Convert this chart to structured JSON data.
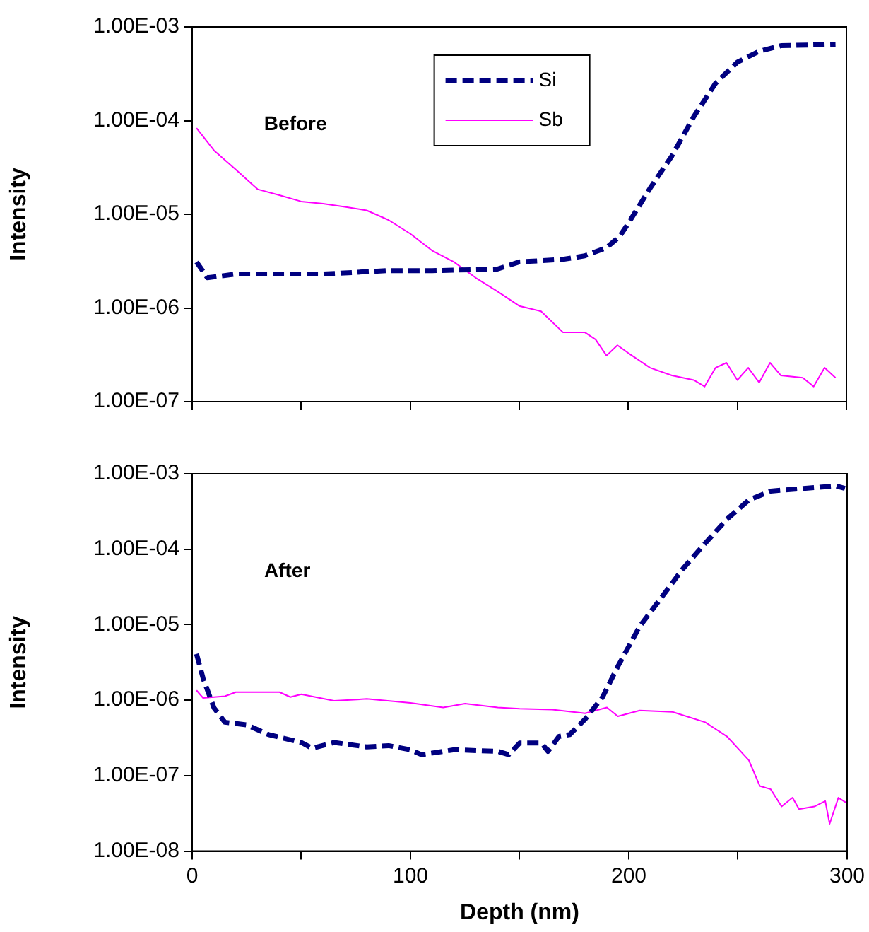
{
  "chart_data": [
    {
      "type": "line",
      "ylabel": "Intensity",
      "annotations": [
        "Before"
      ],
      "log": "y",
      "legend": "top",
      "tick_labels": "y",
      "grid": false,
      "marker": "none",
      "xlim": [
        0,
        300
      ],
      "xticks": [
        0,
        50,
        100,
        150,
        200,
        250,
        300
      ],
      "ylim": [
        1e-07,
        0.001
      ],
      "yticks": [
        {
          "value": 1e-07,
          "label": "1.00E-07"
        },
        {
          "value": 1e-06,
          "label": "1.00E-06"
        },
        {
          "value": 1e-05,
          "label": "1.00E-05"
        },
        {
          "value": 0.0001,
          "label": "1.00E-04"
        },
        {
          "value": 0.001,
          "label": "1.00E-03"
        }
      ],
      "series": [
        {
          "name": "Si",
          "color": "#000080",
          "line_style": "dashed",
          "x": [
            2,
            7,
            20,
            40,
            60,
            89,
            110,
            140,
            150,
            170,
            180,
            190,
            196,
            200,
            210,
            220,
            230,
            240,
            250,
            260,
            270,
            295
          ],
          "values": [
            3.1e-06,
            2.1e-06,
            2.3e-06,
            2.3e-06,
            2.3e-06,
            2.5e-06,
            2.5e-06,
            2.6e-06,
            3.1e-06,
            3.3e-06,
            3.6e-06,
            4.4e-06,
            5.8e-06,
            8e-06,
            1.9e-05,
            4.2e-05,
            0.00011,
            0.00025,
            0.00042,
            0.00055,
            0.00063,
            0.00065
          ]
        },
        {
          "name": "Sb",
          "color": "#ff00ff",
          "line_style": "solid",
          "x": [
            2,
            10,
            20,
            30,
            40,
            50,
            60,
            70,
            80,
            90,
            100,
            110,
            120,
            130,
            140,
            150,
            160,
            170,
            180,
            185,
            190,
            195,
            200,
            210,
            220,
            230,
            235,
            240,
            245,
            250,
            255,
            260,
            265,
            270,
            280,
            285,
            290,
            295
          ],
          "values": [
            8.3e-05,
            4.8e-05,
            3e-05,
            1.85e-05,
            1.6e-05,
            1.37e-05,
            1.3e-05,
            1.2e-05,
            1.1e-05,
            8.7e-06,
            6.2e-06,
            4.1e-06,
            3.1e-06,
            2.1e-06,
            1.5e-06,
            1.05e-06,
            9.2e-07,
            5.5e-07,
            5.5e-07,
            4.6e-07,
            3.1e-07,
            4e-07,
            3.3e-07,
            2.3e-07,
            1.9e-07,
            1.7e-07,
            1.45e-07,
            2.3e-07,
            2.6e-07,
            1.7e-07,
            2.3e-07,
            1.6e-07,
            2.6e-07,
            1.9e-07,
            1.8e-07,
            1.45e-07,
            2.3e-07,
            1.8e-07
          ]
        }
      ]
    },
    {
      "type": "line",
      "ylabel": "Intensity",
      "xlabel": "Depth (nm)",
      "annotations": [
        "After"
      ],
      "log": "y",
      "legend": false,
      "grid": false,
      "marker": "none",
      "xlim": [
        0,
        300
      ],
      "xticks": [
        0,
        {
          "value": 50,
          "label": null
        },
        100,
        {
          "value": 150,
          "label": null
        },
        200,
        {
          "value": 250,
          "label": null
        },
        300
      ],
      "ylim": [
        1e-08,
        0.001
      ],
      "yticks": [
        {
          "value": 1e-08,
          "label": "1.00E-08"
        },
        {
          "value": 1e-07,
          "label": "1.00E-07"
        },
        {
          "value": 1e-06,
          "label": "1.00E-06"
        },
        {
          "value": 1e-05,
          "label": "1.00E-05"
        },
        {
          "value": 0.0001,
          "label": "1.00E-04"
        },
        {
          "value": 0.001,
          "label": "1.00E-03"
        }
      ],
      "series": [
        {
          "color": "#000080",
          "line_style": "dashed",
          "x": [
            2,
            5,
            10,
            15,
            25,
            35,
            50,
            55,
            65,
            80,
            90,
            100,
            105,
            120,
            140,
            145,
            150,
            160,
            163,
            168,
            173,
            180,
            188,
            195,
            205,
            215,
            225,
            235,
            245,
            255,
            265,
            280,
            295,
            299
          ],
          "values": [
            4.1e-06,
            1.95e-06,
            7.9e-07,
            5.1e-07,
            4.7e-07,
            3.5e-07,
            2.75e-07,
            2.3e-07,
            2.75e-07,
            2.4e-07,
            2.5e-07,
            2.2e-07,
            1.9e-07,
            2.2e-07,
            2.1e-07,
            1.9e-07,
            2.7e-07,
            2.7e-07,
            2.1e-07,
            3.3e-07,
            3.5e-07,
            5.6e-07,
            1.1e-06,
            2.8e-06,
            9.5e-06,
            2.3e-05,
            5.6e-05,
            0.00012,
            0.00025,
            0.00045,
            0.00059,
            0.00064,
            0.00069,
            0.00064
          ]
        },
        {
          "color": "#ff00ff",
          "line_style": "solid",
          "x": [
            2,
            5,
            15,
            20,
            40,
            45,
            50,
            65,
            80,
            100,
            115,
            125,
            140,
            150,
            165,
            180,
            190,
            195,
            205,
            220,
            235,
            245,
            255,
            260,
            265,
            270,
            275,
            278,
            285,
            290,
            292,
            296,
            300
          ],
          "values": [
            1.35e-06,
            1.07e-06,
            1.13e-06,
            1.28e-06,
            1.28e-06,
            1.1e-06,
            1.2e-06,
            9.8e-07,
            1.04e-06,
            9.2e-07,
            8e-07,
            9e-07,
            8e-07,
            7.7e-07,
            7.5e-07,
            6.7e-07,
            8e-07,
            6.1e-07,
            7.3e-07,
            7e-07,
            5.1e-07,
            3.3e-07,
            1.6e-07,
            7.3e-08,
            6.6e-08,
            3.9e-08,
            5.1e-08,
            3.6e-08,
            3.9e-08,
            4.6e-08,
            2.3e-08,
            5.1e-08,
            4.3e-08
          ]
        }
      ]
    }
  ]
}
